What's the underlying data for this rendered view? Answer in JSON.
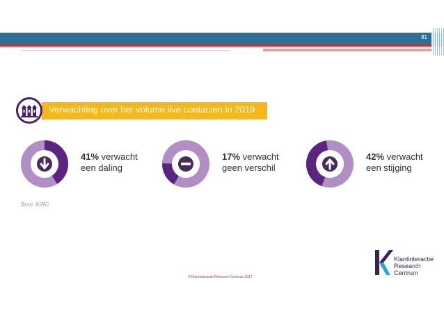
{
  "slide": {
    "page_number": "81",
    "title": "Verwachting over het volume live contacten in 2019",
    "source": "Bron: KIRC",
    "copyright": "© Klantinteractie Research Centrum 2017"
  },
  "stats": [
    {
      "percent": "41%",
      "line1": " verwacht",
      "line2": "een daling",
      "share": 0.41,
      "icon": "arrow-down-icon"
    },
    {
      "percent": "17%",
      "line1": " verwacht",
      "line2": "geen verschil",
      "share": 0.17,
      "icon": "minus-icon"
    },
    {
      "percent": "42%",
      "line1": " verwacht",
      "line2": "een stijging",
      "share": 0.42,
      "icon": "arrow-up-icon"
    }
  ],
  "logo": {
    "line1": "Klantinteractie",
    "line2": "Research",
    "line3": "Centrum"
  },
  "colors": {
    "dark_purple": "#5b2480",
    "light_purple": "#b18fc5",
    "accent_yellow": "#f6b71b",
    "header_blue": "#2e6f97",
    "header_red": "#b23a37"
  }
}
